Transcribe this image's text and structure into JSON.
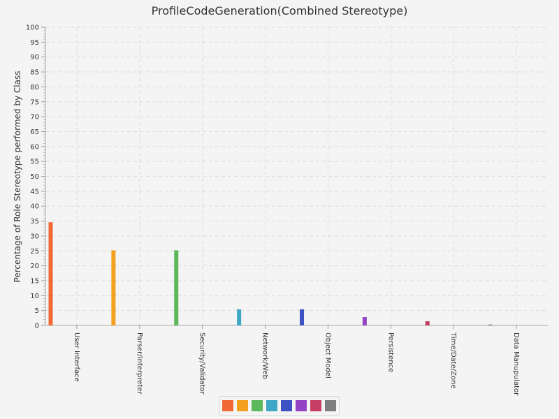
{
  "chart_data": {
    "type": "bar",
    "title": "ProfileCodeGeneration(Combined Stereotype)",
    "xlabel": "",
    "ylabel": "Percentage of Role Stereotype performed by Class",
    "ylim": [
      0,
      100
    ],
    "ytick_step": 5,
    "grid": true,
    "legend_placement": "bottom-center",
    "categories": [
      "User Interface",
      "Parser/Interpreter",
      "Security/Validator",
      "Network/Web",
      "Object Model",
      "Persistence",
      "Time/Date/Zone",
      "Data Manupulator"
    ],
    "values": [
      34.6,
      25.2,
      25.2,
      5.4,
      5.4,
      2.8,
      1.4,
      0.3
    ],
    "colors": [
      "#f16a36",
      "#f3a11e",
      "#5cb85c",
      "#3ea7c6",
      "#3f52c4",
      "#9244c4",
      "#c63e63",
      "#7e7e7e"
    ]
  }
}
